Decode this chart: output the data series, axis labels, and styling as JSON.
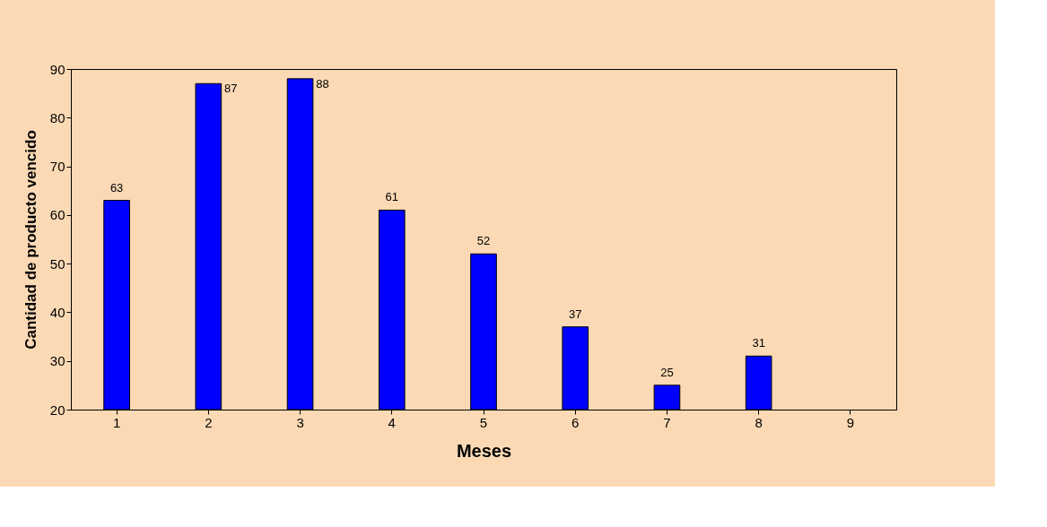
{
  "chart_data": {
    "type": "bar",
    "xlabel": "Meses",
    "ylabel": "Cantidad de producto vencido",
    "categories": [
      "1",
      "2",
      "3",
      "4",
      "5",
      "6",
      "7",
      "8",
      "9"
    ],
    "values": [
      63,
      87,
      88,
      61,
      52,
      37,
      25,
      31,
      null
    ],
    "color": "#0000ff",
    "ylim": [
      20,
      90
    ],
    "yticks": [
      20,
      30,
      40,
      50,
      60,
      70,
      80,
      90
    ],
    "grid": false,
    "data_labels": true
  }
}
